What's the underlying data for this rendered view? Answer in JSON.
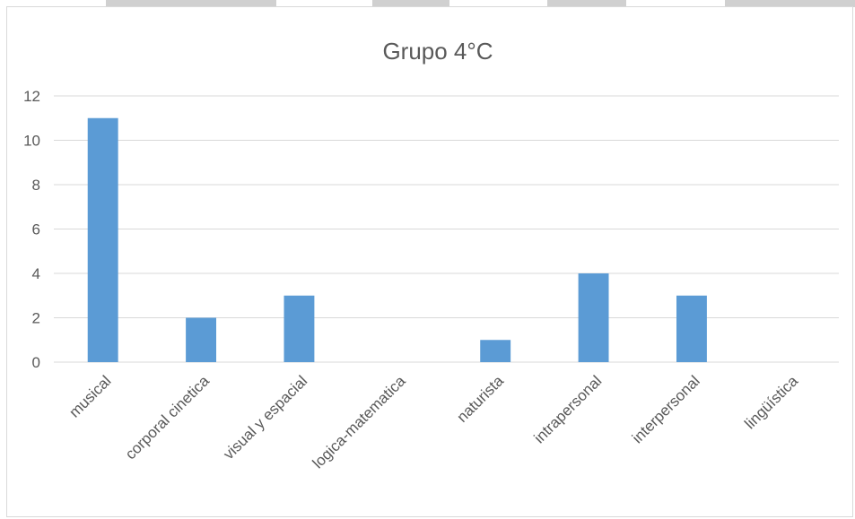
{
  "chart_data": {
    "type": "bar",
    "title": "Grupo 4°C",
    "categories": [
      "musical",
      "corporal cinetica",
      "visual y espacial",
      "logica-matematica",
      "naturista",
      "intrapersonal",
      "interpersonal",
      "lingüística"
    ],
    "values": [
      11,
      2,
      3,
      0,
      1,
      4,
      3,
      0
    ],
    "ylim": [
      0,
      12
    ],
    "yticks": [
      0,
      2,
      4,
      6,
      8,
      10,
      12
    ],
    "grid": true,
    "colors": {
      "bar": "#5b9bd5",
      "grid": "#d9d9d9",
      "text": "#595959"
    }
  }
}
